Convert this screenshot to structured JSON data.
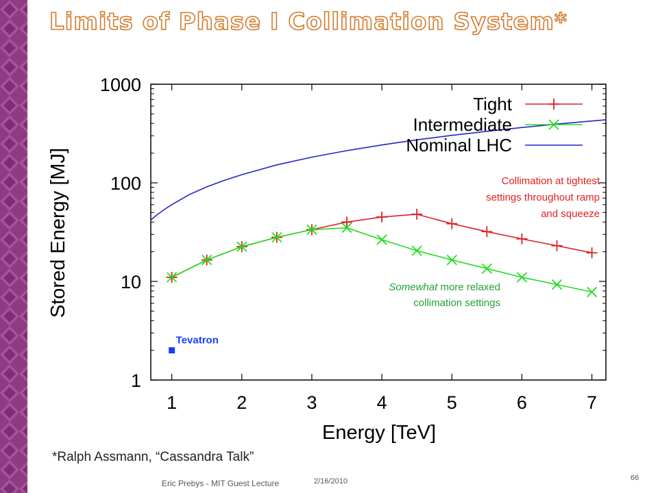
{
  "slide": {
    "title": "Limits of Phase I Collimation System*",
    "footnote": "*Ralph Assmann, “Cassandra Talk”",
    "footer_author": "Eric Prebys - MIT Guest Lecture",
    "footer_date": "2/16/2010",
    "page_number": "66",
    "colors": {
      "stripe": "#8e3b84",
      "title_outline": "#d2792a"
    }
  },
  "chart_data": {
    "type": "line",
    "xlabel": "Energy [TeV]",
    "ylabel": "Stored Energy [MJ]",
    "xlim": [
      0.7,
      7.2
    ],
    "ylim": [
      1,
      1000
    ],
    "y_scale": "log",
    "x_ticks": [
      1,
      2,
      3,
      4,
      5,
      6,
      7
    ],
    "x_tick_labels": [
      "1",
      "2",
      "3",
      "4",
      "5",
      "6",
      "7"
    ],
    "y_ticks": [
      1,
      10,
      100,
      1000
    ],
    "y_tick_labels": [
      "1",
      "10",
      "100",
      "1000"
    ],
    "grid": false,
    "legend_position": "top-right",
    "series": [
      {
        "name": "Tight",
        "color": "#e02020",
        "marker": "plus",
        "x": [
          1,
          1.5,
          2,
          2.5,
          3,
          3.5,
          4,
          4.5,
          5,
          5.5,
          6,
          6.5,
          7
        ],
        "y": [
          11,
          16.5,
          22.5,
          28,
          33.5,
          40,
          45,
          48,
          38.5,
          32,
          27,
          23,
          19.5
        ]
      },
      {
        "name": "Intermediate",
        "color": "#22dd22",
        "marker": "x",
        "x": [
          1,
          1.5,
          2,
          2.5,
          3,
          3.5,
          4,
          4.5,
          5,
          5.5,
          6,
          6.5,
          7
        ],
        "y": [
          11,
          16.5,
          22.5,
          28,
          33.5,
          35,
          26.5,
          20.5,
          16.5,
          13.5,
          11,
          9.3,
          7.8
        ]
      },
      {
        "name": "Nominal LHC",
        "color": "#2222cc",
        "marker": "none",
        "x": [
          0.7,
          0.8,
          0.9,
          1,
          1.25,
          1.5,
          1.75,
          2,
          2.5,
          3,
          3.5,
          4,
          4.5,
          5,
          5.5,
          6,
          6.5,
          7,
          7.2
        ],
        "y": [
          42,
          48,
          54,
          60,
          76,
          91,
          106,
          121,
          152,
          182,
          212,
          242,
          273,
          303,
          333,
          364,
          394,
          424,
          436
        ]
      },
      {
        "name": "Tevatron",
        "color": "#1a3cff",
        "marker": "square",
        "x": [
          1
        ],
        "y": [
          2
        ]
      }
    ],
    "annotations": [
      {
        "lines": [
          "Collimation at tightest",
          "settings throughout ramp",
          "and squeeze"
        ],
        "color": "#e02020"
      },
      {
        "lines": [
          "Somewhat more relaxed",
          "collimation settings"
        ],
        "italic_prefix": "Somewhat",
        "color": "#22a035"
      }
    ]
  }
}
